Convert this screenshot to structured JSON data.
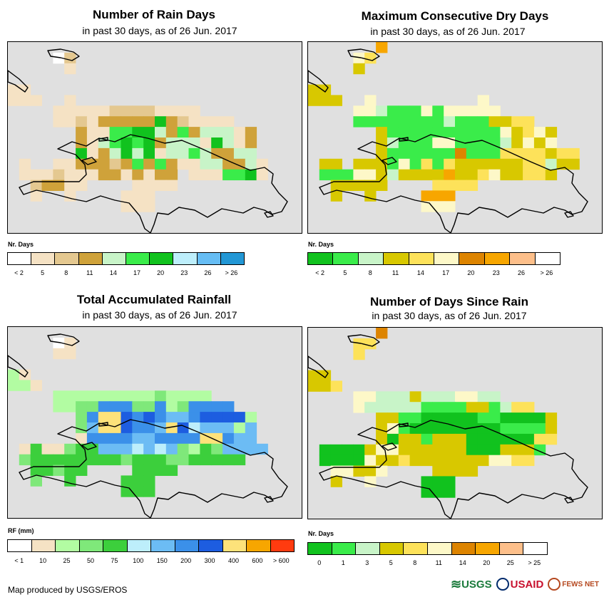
{
  "footer": "Map produced by USGS/EROS",
  "logos": {
    "usgs": "USGS",
    "usaid": "USAID",
    "fews": "FEWS NET"
  },
  "panels": [
    {
      "id": "rain-days",
      "title": "Number of Rain Days",
      "subtitle": "in past 30 days, as of 26 Jun. 2017",
      "legend_title": "Nr. Days",
      "legend_labels": [
        "< 2",
        "5",
        "8",
        "11",
        "14",
        "17",
        "20",
        "23",
        "26",
        "> 26"
      ],
      "colors": [
        "#ffffff",
        "#f5e2c4",
        "#e4c890",
        "#cfa23a",
        "#c8f4c8",
        "#3aec4a",
        "#11c21e",
        "#bdeefb",
        "#66bdf4",
        "#2297d5"
      ],
      "grid": [
        "..........................",
        "....02....................",
        ".....1....................",
        "..........................",
        "11........................",
        "111..1....................",
        "....1111122221111.........",
        "....1121333336321111......",
        "......3115566435344413....",
        "......3145656344416413....",
        "......6134646144543344....",
        ".1..1133323535311443341...",
        ".11121113313133.1115561...",
        "..23311....1111...........",
        "..1..1....111.............",
        "..........111.............",
        "..........................",
        ".........................."
      ]
    },
    {
      "id": "dry-days",
      "title": "Maximum Consecutive Dry Days",
      "subtitle": "in past 30 days, as of 26 Jun. 2017",
      "legend_title": "Nr. Days",
      "legend_labels": [
        "< 2",
        "5",
        "8",
        "11",
        "14",
        "17",
        "20",
        "23",
        "26",
        "> 26"
      ],
      "colors": [
        "#11c21e",
        "#3aec4a",
        "#c8f4c8",
        "#d8c800",
        "#fde25a",
        "#fdf8c8",
        "#dd8400",
        "#f7a600",
        "#fdbf8a",
        "#ffffff"
      ],
      "grid": [
        "......7...................",
        "....54....................",
        "....3.....................",
        "..........................",
        "33........................",
        "333..5.........5..........",
        "....5521115155555.........",
        "....1111111121113344......",
        "......3111111111153453....",
        "......3211155111123535....",
        "......311111161114444344..",
        ".33.33315141433333344233..",
        ".111553233337334533443....",
        "..33333....4444...........",
        "..3..3....777.............",
        "..........555.............",
        "..........................",
        ".........................."
      ]
    },
    {
      "id": "rainfall",
      "title": "Total Accumulated Rainfall",
      "subtitle": "in past 30 days, as of 26 Jun. 2017",
      "legend_title": "RF (mm)",
      "legend_labels": [
        "< 1",
        "10",
        "25",
        "50",
        "75",
        "100",
        "150",
        "200",
        "300",
        "400",
        "600",
        "> 600"
      ],
      "colors": [
        "#ffffff",
        "#f5e2c4",
        "#b2fca2",
        "#7fe87a",
        "#3ccf3c",
        "#bdeefb",
        "#6cbcf4",
        "#3b90e9",
        "#1d5de0",
        "#fde27a",
        "#f7a600",
        "#ff3b0f"
      ],
      "grid": [
        "..........................",
        "....01....................",
        "....11....................",
        "..........................",
        "21........................",
        "221.......................",
        "....22222222232222........",
        "....2233777337237777......",
        "......3799878766788882....",
        "......3699877698566626....",
        "......1777766777799766....",
        ".1411344666565632436666...",
        ".34444444434443344444.....",
        "..44344....4444...........",
        "..3..4....444.............",
        "..........444.............",
        "..........................",
        ".........................."
      ]
    },
    {
      "id": "days-since",
      "title": "Number of Days Since Rain",
      "subtitle": "in past 30 days, as of 26 Jun. 2017",
      "legend_title": "Nr. Days",
      "legend_labels": [
        "0",
        "1",
        "3",
        "5",
        "8",
        "11",
        "14",
        "20",
        "25",
        "> 25"
      ],
      "colors": [
        "#11c21e",
        "#3aec4a",
        "#c8f4c8",
        "#d8c800",
        "#fde25a",
        "#fdf8c8",
        "#dd8400",
        "#f7a600",
        "#fdbf8a",
        "#ffffff"
      ],
      "grid": [
        "......6...................",
        "....44....................",
        "....4.....................",
        "..........................",
        "33........................",
        "334.......................",
        "....5522232225522.........",
        "....5222221111331244......",
        "......3311000001100003....",
        "......3510000000011113....",
        "......3033133300000044....",
        ".00003553333330003331.....",
        ".0000533433333335544......",
        "..55335....3333...........",
        "..3..5....000.............",
        "..........000.............",
        "..........................",
        ".........................."
      ]
    }
  ]
}
